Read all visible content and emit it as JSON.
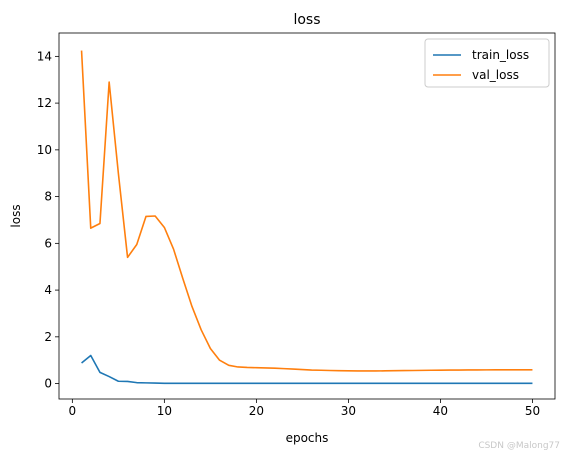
{
  "chart_data": {
    "type": "line",
    "title": "loss",
    "xlabel": "epochs",
    "ylabel": "loss",
    "xlim": [
      -1.45,
      52.45
    ],
    "ylim": [
      -0.66,
      15.0
    ],
    "xticks": [
      0,
      10,
      20,
      30,
      40,
      50
    ],
    "yticks": [
      0,
      2,
      4,
      6,
      8,
      10,
      12,
      14
    ],
    "grid": false,
    "legend_position": "top-right",
    "x": [
      1,
      2,
      3,
      4,
      5,
      6,
      7,
      8,
      9,
      10,
      11,
      12,
      13,
      14,
      15,
      16,
      17,
      18,
      19,
      20,
      21,
      22,
      23,
      24,
      25,
      26,
      27,
      28,
      29,
      30,
      31,
      32,
      33,
      34,
      35,
      36,
      37,
      38,
      39,
      40,
      41,
      42,
      43,
      44,
      45,
      46,
      47,
      48,
      49,
      50
    ],
    "series": [
      {
        "name": "train_loss",
        "color": "#1f77b4",
        "values": [
          0.88,
          1.2,
          0.48,
          0.3,
          0.1,
          0.09,
          0.04,
          0.03,
          0.02,
          0.01,
          0.01,
          0.01,
          0.01,
          0.01,
          0.01,
          0.01,
          0.01,
          0.01,
          0.01,
          0.01,
          0.01,
          0.01,
          0.01,
          0.01,
          0.01,
          0.01,
          0.01,
          0.01,
          0.01,
          0.01,
          0.01,
          0.01,
          0.01,
          0.01,
          0.01,
          0.01,
          0.01,
          0.01,
          0.01,
          0.01,
          0.01,
          0.01,
          0.01,
          0.01,
          0.01,
          0.01,
          0.01,
          0.01,
          0.01,
          0.01
        ]
      },
      {
        "name": "val_loss",
        "color": "#ff7f0e",
        "values": [
          14.25,
          6.65,
          6.85,
          12.9,
          9.0,
          5.4,
          5.95,
          7.15,
          7.17,
          6.68,
          5.75,
          4.5,
          3.3,
          2.3,
          1.5,
          1.0,
          0.78,
          0.71,
          0.69,
          0.68,
          0.67,
          0.66,
          0.64,
          0.62,
          0.6,
          0.58,
          0.57,
          0.56,
          0.55,
          0.545,
          0.54,
          0.54,
          0.54,
          0.545,
          0.55,
          0.555,
          0.56,
          0.565,
          0.57,
          0.575,
          0.58,
          0.58,
          0.582,
          0.584,
          0.586,
          0.588,
          0.59,
          0.59,
          0.59,
          0.59
        ]
      }
    ]
  },
  "watermark": "CSDN @Malong77"
}
